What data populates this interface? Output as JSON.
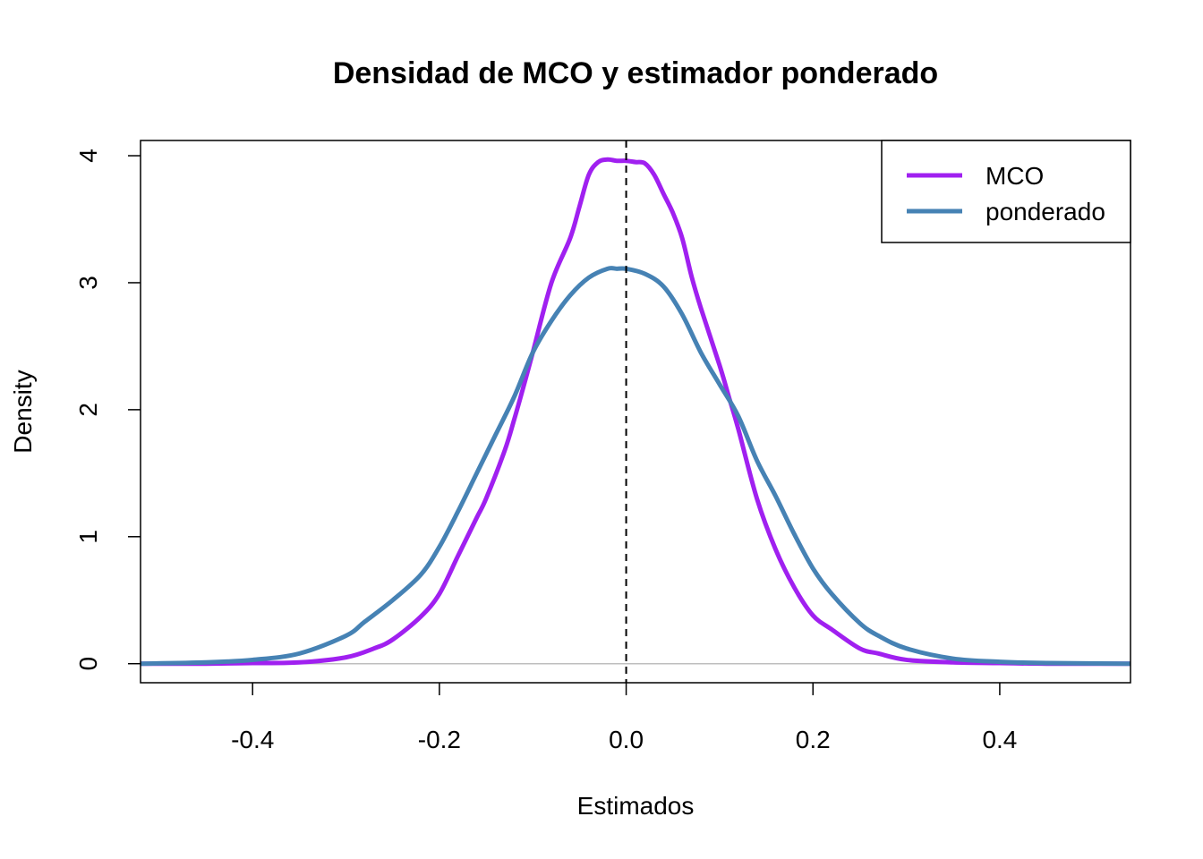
{
  "chart_data": {
    "type": "line",
    "title": "Densidad de MCO y estimador ponderado",
    "xlabel": "Estimados",
    "ylabel": "Density",
    "xlim": [
      -0.52,
      0.54
    ],
    "ylim": [
      -0.15,
      4.12
    ],
    "x_ticks": [
      -0.4,
      -0.2,
      0.0,
      0.2,
      0.4
    ],
    "x_tick_labels": [
      "-0.4",
      "-0.2",
      "0.0",
      "0.2",
      "0.4"
    ],
    "y_ticks": [
      0,
      1,
      2,
      3,
      4
    ],
    "y_tick_labels": [
      "0",
      "1",
      "2",
      "3",
      "4"
    ],
    "reference_line": {
      "x": 0.0,
      "style": "dashed",
      "color": "#000000"
    },
    "baseline": {
      "y": 0,
      "color": "#bebebe"
    },
    "legend": {
      "position": "top-right",
      "entries": [
        "MCO",
        "ponderado"
      ]
    },
    "series": [
      {
        "name": "MCO",
        "color": "#a020f0",
        "x": [
          -0.52,
          -0.45,
          -0.4,
          -0.35,
          -0.3,
          -0.27,
          -0.25,
          -0.22,
          -0.2,
          -0.18,
          -0.16,
          -0.15,
          -0.13,
          -0.12,
          -0.11,
          -0.1,
          -0.08,
          -0.06,
          -0.05,
          -0.04,
          -0.03,
          -0.02,
          -0.01,
          0.0,
          0.01,
          0.02,
          0.03,
          0.04,
          0.05,
          0.06,
          0.07,
          0.08,
          0.1,
          0.11,
          0.12,
          0.14,
          0.16,
          0.18,
          0.2,
          0.22,
          0.25,
          0.27,
          0.3,
          0.35,
          0.4,
          0.45,
          0.54
        ],
        "values": [
          0.0,
          0.0,
          0.005,
          0.01,
          0.05,
          0.12,
          0.19,
          0.37,
          0.55,
          0.85,
          1.15,
          1.3,
          1.68,
          1.92,
          2.18,
          2.45,
          3.0,
          3.35,
          3.6,
          3.85,
          3.95,
          3.97,
          3.96,
          3.96,
          3.95,
          3.94,
          3.85,
          3.7,
          3.55,
          3.35,
          3.05,
          2.8,
          2.35,
          2.1,
          1.85,
          1.3,
          0.9,
          0.6,
          0.38,
          0.27,
          0.12,
          0.08,
          0.03,
          0.01,
          0.005,
          0.0,
          0.0
        ]
      },
      {
        "name": "ponderado",
        "color": "#4682b4",
        "x": [
          -0.52,
          -0.45,
          -0.4,
          -0.35,
          -0.3,
          -0.28,
          -0.25,
          -0.22,
          -0.2,
          -0.18,
          -0.16,
          -0.14,
          -0.12,
          -0.1,
          -0.08,
          -0.06,
          -0.04,
          -0.02,
          -0.01,
          0.0,
          0.02,
          0.04,
          0.06,
          0.08,
          0.1,
          0.12,
          0.14,
          0.16,
          0.18,
          0.2,
          0.22,
          0.25,
          0.27,
          0.3,
          0.35,
          0.4,
          0.45,
          0.54
        ],
        "values": [
          0.0,
          0.01,
          0.03,
          0.08,
          0.22,
          0.33,
          0.5,
          0.7,
          0.92,
          1.2,
          1.5,
          1.8,
          2.1,
          2.45,
          2.7,
          2.9,
          3.04,
          3.11,
          3.11,
          3.11,
          3.07,
          2.97,
          2.75,
          2.45,
          2.2,
          1.95,
          1.6,
          1.32,
          1.02,
          0.75,
          0.55,
          0.32,
          0.22,
          0.12,
          0.04,
          0.015,
          0.005,
          0.0
        ]
      }
    ]
  }
}
